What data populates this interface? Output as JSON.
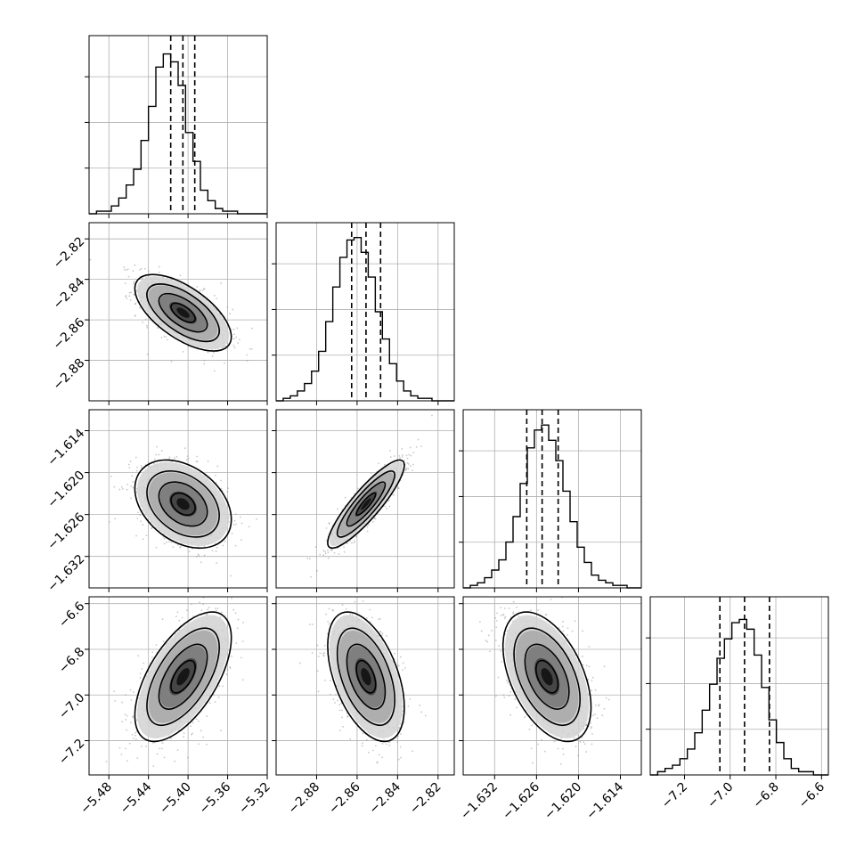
{
  "chart_data": {
    "type": "corner",
    "title": "",
    "parameters": [
      {
        "range": [
          -5.5,
          -5.32
        ],
        "ticks": [
          "−5.48",
          "−5.44",
          "−5.40",
          "−5.36",
          "−5.32"
        ],
        "tick_values": [
          -5.48,
          -5.44,
          -5.4,
          -5.36,
          -5.32
        ],
        "quantiles": [
          -5.4175,
          -5.4052,
          -5.3932
        ],
        "histogram": {
          "bin_edges_start": -5.5,
          "bin_width": 0.0075,
          "counts": [
            0,
            1,
            1,
            3,
            6,
            11,
            17,
            28,
            41,
            56,
            61,
            58,
            49,
            31,
            20,
            9,
            5,
            2,
            1,
            1,
            0,
            0,
            0,
            0
          ]
        },
        "hist_ymax": 68
      },
      {
        "range": [
          -2.9,
          -2.812
        ],
        "ticks": [
          "−2.88",
          "−2.86",
          "−2.84",
          "−2.82"
        ],
        "tick_values": [
          -2.88,
          -2.86,
          -2.84,
          -2.82
        ],
        "quantiles": [
          -2.8627,
          -2.8556,
          -2.8484
        ],
        "histogram": {
          "bin_edges_start": -2.9,
          "bin_width": 0.0035,
          "counts": [
            0,
            1,
            2,
            4,
            7,
            12,
            20,
            32,
            46,
            58,
            65,
            66,
            60,
            50,
            36,
            25,
            15,
            8,
            4,
            2,
            1,
            1,
            0,
            0,
            0
          ]
        },
        "hist_ymax": 72
      },
      {
        "range": [
          -1.6365,
          -1.611
        ],
        "ticks": [
          "−1.632",
          "−1.626",
          "−1.620",
          "−1.614"
        ],
        "tick_values": [
          -1.632,
          -1.626,
          -1.62,
          -1.614
        ],
        "quantiles": [
          -1.6274,
          -1.6252,
          -1.6229
        ],
        "histogram": {
          "bin_edges_start": -1.6365,
          "bin_width": 0.00102,
          "counts": [
            0,
            1,
            2,
            4,
            7,
            11,
            18,
            28,
            41,
            55,
            62,
            64,
            58,
            50,
            38,
            26,
            16,
            10,
            5,
            3,
            2,
            1,
            1,
            0,
            0
          ]
        },
        "hist_ymax": 70
      },
      {
        "range": [
          -7.35,
          -6.57
        ],
        "ticks": [
          "−7.2",
          "−7.0",
          "−6.8",
          "−6.6"
        ],
        "tick_values": [
          -7.2,
          -7.0,
          -6.8,
          -6.6
        ],
        "quantiles": [
          -7.045,
          -6.937,
          -6.828
        ],
        "histogram": {
          "bin_edges_start": -7.35,
          "bin_width": 0.0325,
          "counts": [
            0,
            1,
            2,
            3,
            5,
            8,
            13,
            20,
            28,
            36,
            42,
            47,
            48,
            45,
            37,
            27,
            17,
            10,
            5,
            2,
            1,
            1,
            0,
            0
          ]
        },
        "hist_ymax": 55
      }
    ],
    "pairs": [
      {
        "x": 0,
        "y": 1,
        "center": [
          -5.405,
          -2.8565
        ],
        "sigma": [
          0.0232,
          0.009
        ],
        "rho": -0.63
      },
      {
        "x": 0,
        "y": 2,
        "center": [
          -5.405,
          -1.6245
        ],
        "sigma": [
          0.0232,
          0.003
        ],
        "rho": -0.35
      },
      {
        "x": 1,
        "y": 2,
        "center": [
          -2.8556,
          -1.6245
        ],
        "sigma": [
          0.009,
          0.003
        ],
        "rho": 0.88
      },
      {
        "x": 0,
        "y": 3,
        "center": [
          -5.405,
          -6.92
        ],
        "sigma": [
          0.0232,
          0.135
        ],
        "rho": 0.6
      },
      {
        "x": 1,
        "y": 3,
        "center": [
          -2.8556,
          -6.92
        ],
        "sigma": [
          0.009,
          0.135
        ],
        "rho": -0.48
      },
      {
        "x": 2,
        "y": 3,
        "center": [
          -1.6245,
          -6.92
        ],
        "sigma": [
          0.003,
          0.135
        ],
        "rho": -0.47
      }
    ],
    "contour_levels_sigma": [
      0.5,
      1.0,
      1.5,
      2.0
    ],
    "grid": true,
    "colors": {
      "line": "#000000",
      "grid": "#b0b0b0",
      "scatter": "#9a9a9a"
    }
  }
}
